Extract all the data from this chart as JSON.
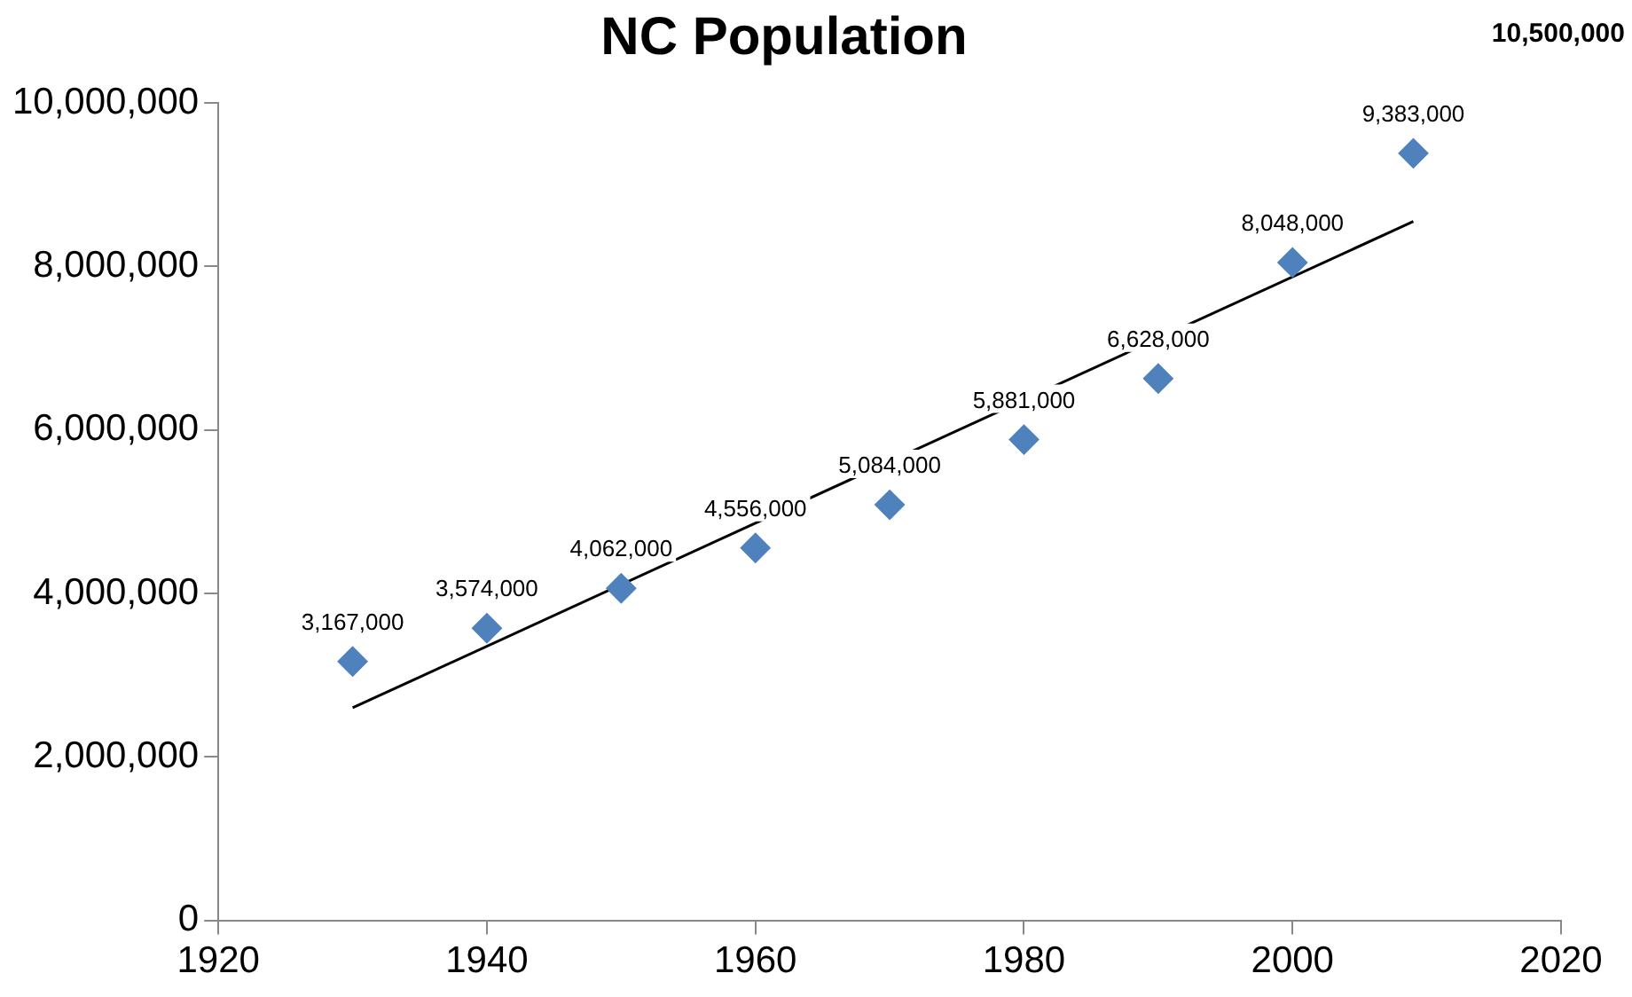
{
  "chart_data": {
    "type": "scatter",
    "title": "NC Population",
    "annotations": [
      "10,500,000"
    ],
    "x": [
      1930,
      1940,
      1950,
      1960,
      1970,
      1980,
      1990,
      2000,
      2009
    ],
    "series": [
      {
        "type": "scatter",
        "color": "#4f81bd",
        "values": [
          3167000,
          3574000,
          4062000,
          4556000,
          5084000,
          5881000,
          6628000,
          8048000,
          9383000
        ],
        "value_labels": [
          "3,167,000",
          "3,574,000",
          "4,062,000",
          "4,556,000",
          "5,084,000",
          "5,881,000",
          "6,628,000",
          "8,048,000",
          "9,383,000"
        ]
      },
      {
        "type": "line",
        "color": "#000000",
        "x": [
          1930,
          2009
        ],
        "values": [
          2600000,
          8550000
        ],
        "marker": "none"
      }
    ],
    "marker": "diamond",
    "grid": false,
    "legend": false,
    "xlim": [
      1920,
      2020
    ],
    "xticks": [
      1920,
      1940,
      1960,
      1980,
      2000,
      2020
    ],
    "ylim": [
      0,
      10000000
    ],
    "yticks": [
      0,
      {
        "value": 2000000,
        "label": "2,000,000"
      },
      {
        "value": 4000000,
        "label": "4,000,000"
      },
      {
        "value": 6000000,
        "label": "6,000,000"
      },
      {
        "value": 8000000,
        "label": "8,000,000"
      },
      {
        "value": 10000000,
        "label": "10,000,000"
      }
    ]
  }
}
